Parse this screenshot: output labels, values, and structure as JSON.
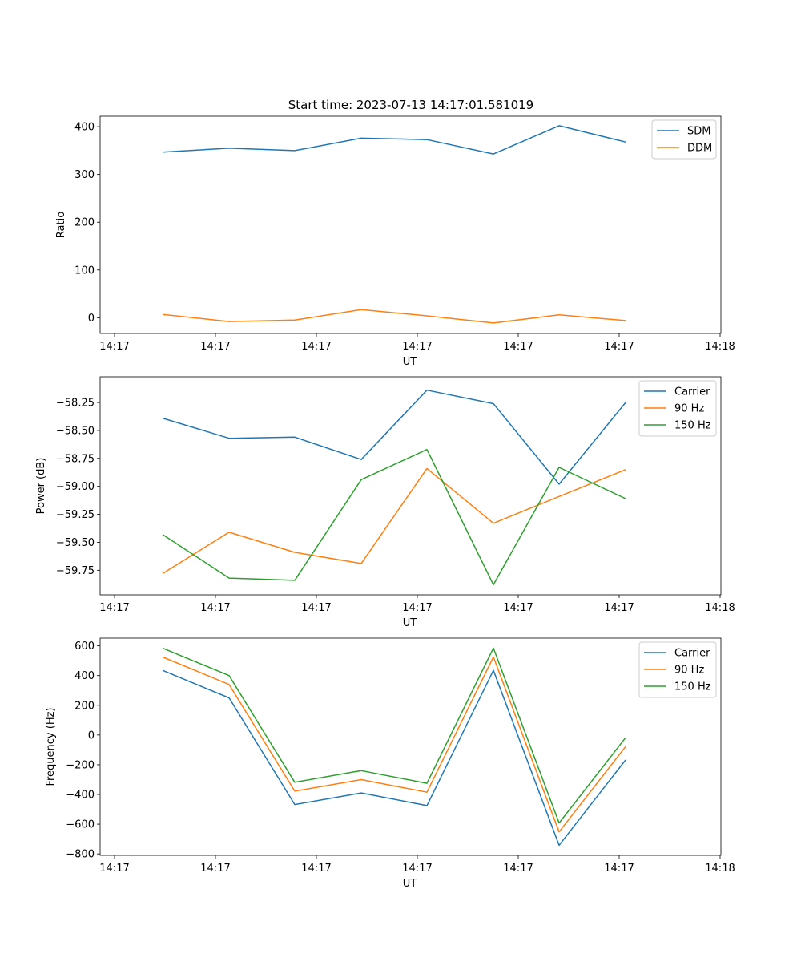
{
  "figure": {
    "title": "Start time: 2023-07-13 14:17:01.581019"
  },
  "chart_data": [
    {
      "type": "line",
      "title": "Start time: 2023-07-13 14:17:01.581019",
      "xlabel": "UT",
      "ylabel": "Ratio",
      "x_ticks": [
        "14:17",
        "14:17",
        "14:17",
        "14:17",
        "14:17",
        "14:17",
        "14:18"
      ],
      "y_ticks": [
        "0",
        "100",
        "200",
        "300",
        "400"
      ],
      "y_tick_values": [
        0,
        100,
        200,
        300,
        400
      ],
      "ylim": [
        -33,
        422
      ],
      "legend_position": "top-right",
      "series": [
        {
          "name": "SDM",
          "color": "#1f77b4",
          "values": [
            347,
            355,
            350,
            376,
            373,
            343,
            402,
            368
          ]
        },
        {
          "name": "DDM",
          "color": "#ff7f0e",
          "values": [
            7,
            -8,
            -5,
            17,
            4,
            -11,
            6,
            -6
          ]
        }
      ]
    },
    {
      "type": "line",
      "title": "",
      "xlabel": "UT",
      "ylabel": "Power (dB)",
      "x_ticks": [
        "14:17",
        "14:17",
        "14:17",
        "14:17",
        "14:17",
        "14:17",
        "14:18"
      ],
      "y_ticks": [
        "−59.75",
        "−59.50",
        "−59.25",
        "−59.00",
        "−58.75",
        "−58.50",
        "−58.25"
      ],
      "y_tick_values": [
        -59.75,
        -59.5,
        -59.25,
        -59.0,
        -58.75,
        -58.5,
        -58.25
      ],
      "ylim": [
        -59.97,
        -58.02
      ],
      "legend_position": "top-right",
      "series": [
        {
          "name": "Carrier",
          "color": "#1f77b4",
          "values": [
            -58.39,
            -58.57,
            -58.56,
            -58.76,
            -58.14,
            -58.26,
            -58.98,
            -58.25
          ]
        },
        {
          "name": "90 Hz",
          "color": "#ff7f0e",
          "values": [
            -59.78,
            -59.41,
            -59.59,
            -59.69,
            -58.84,
            -59.33,
            -59.09,
            -58.85
          ]
        },
        {
          "name": "150 Hz",
          "color": "#2ca02c",
          "values": [
            -59.43,
            -59.82,
            -59.84,
            -58.94,
            -58.67,
            -59.88,
            -58.83,
            -59.11
          ]
        }
      ]
    },
    {
      "type": "line",
      "title": "",
      "xlabel": "UT",
      "ylabel": "Frequency (Hz)",
      "x_ticks": [
        "14:17",
        "14:17",
        "14:17",
        "14:17",
        "14:17",
        "14:17",
        "14:18"
      ],
      "y_ticks": [
        "−800",
        "−600",
        "−400",
        "−200",
        "0",
        "200",
        "400",
        "600"
      ],
      "y_tick_values": [
        -800,
        -600,
        -400,
        -200,
        0,
        200,
        400,
        600
      ],
      "ylim": [
        -810,
        652
      ],
      "legend_position": "top-right",
      "series": [
        {
          "name": "Carrier",
          "color": "#1f77b4",
          "values": [
            435,
            250,
            -468,
            -390,
            -475,
            435,
            -742,
            -168
          ]
        },
        {
          "name": "90 Hz",
          "color": "#ff7f0e",
          "values": [
            525,
            340,
            -378,
            -300,
            -385,
            525,
            -652,
            -78
          ]
        },
        {
          "name": "150 Hz",
          "color": "#2ca02c",
          "values": [
            585,
            400,
            -318,
            -240,
            -325,
            585,
            -592,
            -18
          ]
        }
      ]
    }
  ]
}
